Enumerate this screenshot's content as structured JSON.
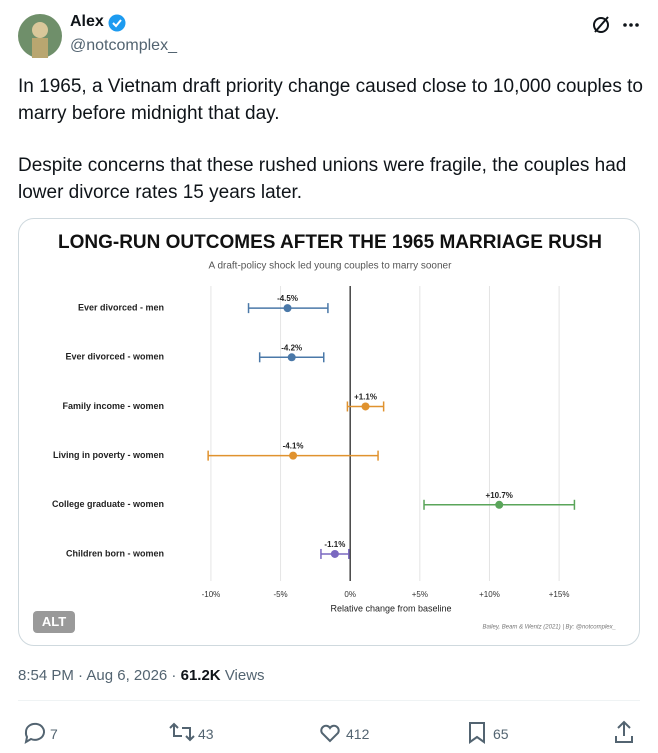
{
  "tweet": {
    "name": "Alex",
    "handle": "@notcomplex_",
    "text": [
      "In 1965, a Vietnam draft priority change caused close to 10,000 couples to marry before midnight that day.",
      "Despite concerns that these rushed unions were fragile, the couples had lower divorce rates 15 years later."
    ],
    "alt": "ALT",
    "timestamp": "8:54 PM · Aug 6, 2026 · ",
    "views": "61.2K",
    "views_label": "Views",
    "replies": 7,
    "reposts": 43,
    "likes": 412,
    "bookmarks": 65
  },
  "chart_data": {
    "type": "forest",
    "title": "LONG-RUN OUTCOMES AFTER THE 1965 MARRIAGE RUSH",
    "subtitle": "A draft-policy shock led young couples to marry sooner",
    "xlabel": "Relative change from baseline",
    "source": "Bailey, Beam & Wentz (2021) | By: @notcomplex_",
    "categories": [
      "Ever divorced - men",
      "Ever divorced - women",
      "Family income - women",
      "Living in poverty - women",
      "College graduate - women",
      "Children born - women"
    ],
    "values": [
      -4.5,
      -4.2,
      1.1,
      -4.1,
      10.7,
      -1.1
    ],
    "value_labels": [
      "-4.5%",
      "-4.2%",
      "+1.1%",
      "-4.1%",
      "+10.7%",
      "-1.1%"
    ],
    "ci_low": [
      -7.3,
      -6.5,
      -0.2,
      -10.2,
      5.3,
      -2.1
    ],
    "ci_high": [
      -1.6,
      -1.9,
      2.4,
      2.0,
      16.1,
      -0.1
    ],
    "colors": [
      "#4a78a8",
      "#4a78a8",
      "#e0922e",
      "#e0922e",
      "#5aa55a",
      "#7a68c0"
    ],
    "xlim": [
      -11,
      16.5
    ],
    "xticks": [
      {
        "value": -10,
        "label": "-10%"
      },
      {
        "value": -5,
        "label": "-5%"
      },
      {
        "value": 0,
        "label": "0%"
      },
      {
        "value": 5,
        "label": "+5%"
      },
      {
        "value": 10,
        "label": "+10%"
      },
      {
        "value": 15,
        "label": "+15%"
      }
    ],
    "grid": true
  }
}
